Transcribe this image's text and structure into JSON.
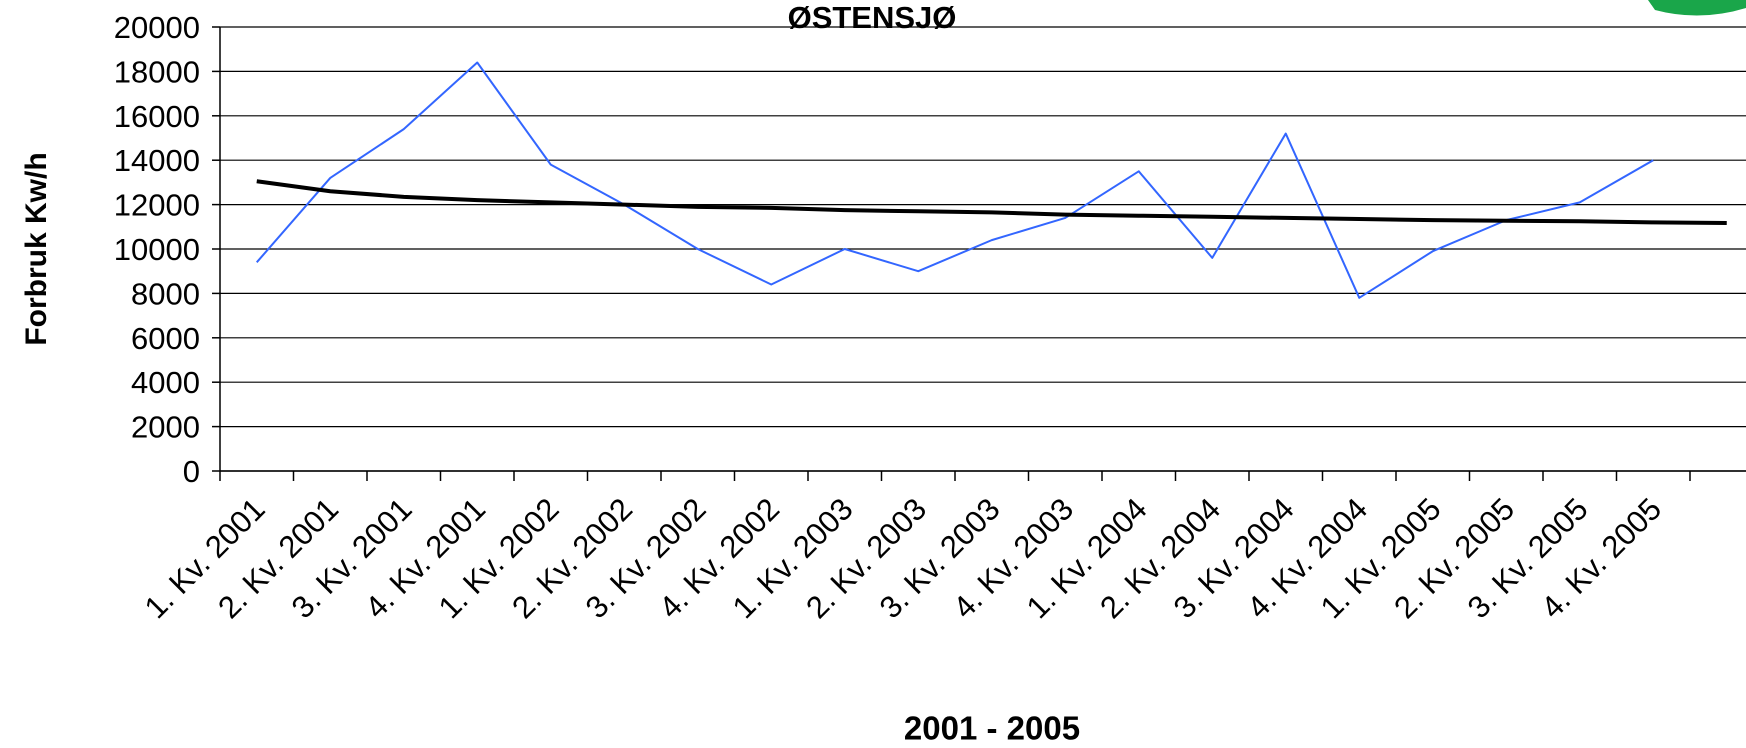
{
  "chart_data": {
    "type": "line",
    "title": "ØSTENSJØ",
    "x_label": "2001 - 2005",
    "y_label": "Forbruk Kw/h",
    "categories": [
      "1. Kv. 2001",
      "2. Kv. 2001",
      "3. Kv. 2001",
      "4. Kv. 2001",
      "1. Kv. 2002",
      "2. Kv. 2002",
      "3. Kv. 2002",
      "4. Kv. 2002",
      "1. Kv. 2003",
      "2. Kv. 2003",
      "3. Kv. 2003",
      "4. Kv. 2003",
      "1. Kv. 2004",
      "2. Kv. 2004",
      "3. Kv. 2004",
      "4. Kv. 2004",
      "1. Kv. 2005",
      "2. Kv. 2005",
      "3. Kv. 2005",
      "4. Kv. 2005",
      null
    ],
    "series": [
      {
        "color": "#3366ff",
        "values": [
          9400,
          13200,
          15400,
          18400,
          13800,
          12000,
          10000,
          8400,
          10000,
          9000,
          10400,
          11400,
          13500,
          9600,
          15200,
          7800,
          9900,
          11300,
          12100,
          14000,
          null
        ]
      },
      {
        "color": "#000000",
        "values": [
          13050,
          12600,
          12350,
          12200,
          12100,
          12000,
          11900,
          11850,
          11750,
          11700,
          11650,
          11550,
          11500,
          11450,
          11400,
          11350,
          11300,
          11270,
          11250,
          11200,
          11170
        ]
      }
    ],
    "ylim": [
      0,
      20000
    ],
    "yticks": [
      0,
      2000,
      4000,
      6000,
      8000,
      10000,
      12000,
      14000,
      16000,
      18000,
      20000
    ],
    "grid": true
  }
}
